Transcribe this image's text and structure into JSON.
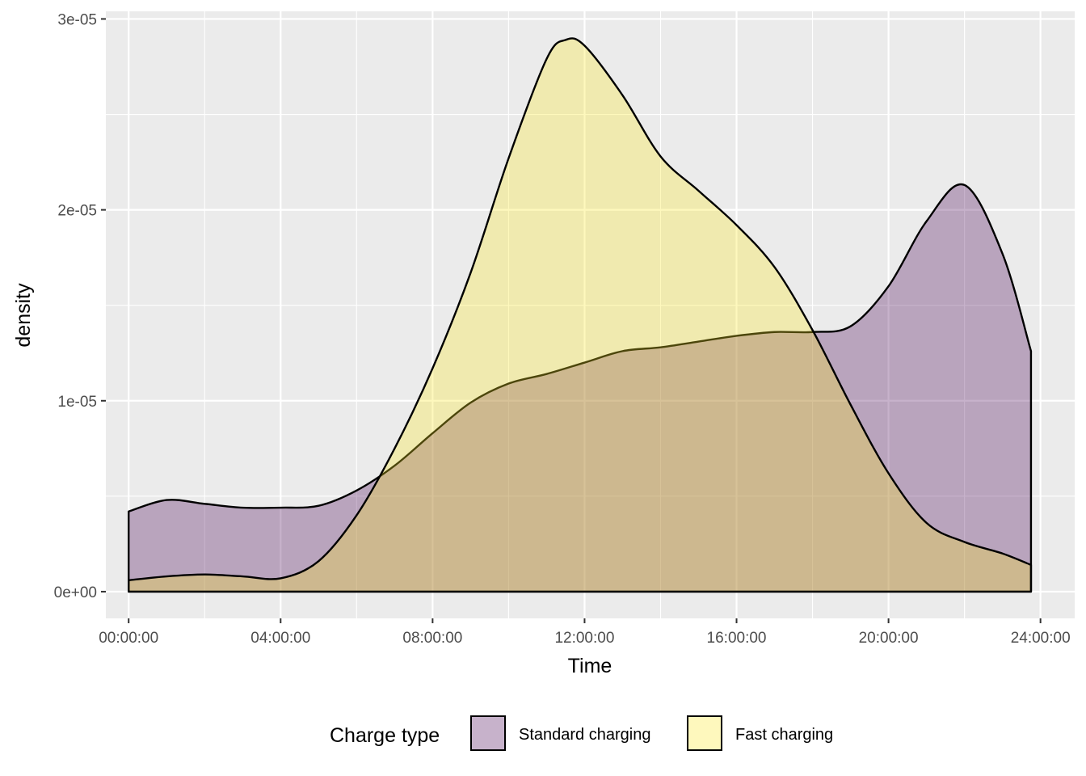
{
  "chart_data": {
    "type": "area",
    "subtype": "density",
    "title": "",
    "xlabel": "Time",
    "ylabel": "density",
    "x_unit": "hours",
    "xlim": [
      -0.6,
      24.9
    ],
    "ylim": [
      -1.4e-06,
      3.04e-05
    ],
    "x_ticks": [
      0,
      4,
      8,
      12,
      16,
      20,
      24
    ],
    "x_tick_labels": [
      "00:00:00",
      "04:00:00",
      "08:00:00",
      "12:00:00",
      "16:00:00",
      "20:00:00",
      "24:00:00"
    ],
    "x_minor_ticks": [
      2,
      6,
      10,
      14,
      18,
      22
    ],
    "y_ticks": [
      0,
      1e-05,
      2e-05,
      3e-05
    ],
    "y_tick_labels": [
      "0e+00",
      "1e-05",
      "2e-05",
      "3e-05"
    ],
    "y_minor_ticks": [
      5e-06,
      1.5e-05,
      2.5e-05
    ],
    "grid": true,
    "panel_background": "#ebebeb",
    "grid_color": "#ffffff",
    "legend": {
      "title": "Charge type",
      "position": "bottom",
      "entries": [
        "Standard charging",
        "Fast charging"
      ]
    },
    "x_range_data": [
      0,
      23.75
    ],
    "series": [
      {
        "name": "Standard charging",
        "fill": "#440154",
        "fill_opacity": 0.3,
        "outline": "#000000",
        "x": [
          0,
          1,
          2,
          3,
          4,
          5,
          6,
          7,
          8,
          9,
          10,
          11,
          12,
          13,
          14,
          15,
          16,
          17,
          18,
          19,
          20,
          21,
          22,
          23,
          23.75
        ],
        "y": [
          4.2e-06,
          4.8e-06,
          4.6e-06,
          4.4e-06,
          4.4e-06,
          4.5e-06,
          5.3e-06,
          6.6e-06,
          8.3e-06,
          9.9e-06,
          1.09e-05,
          1.14e-05,
          1.2e-05,
          1.26e-05,
          1.28e-05,
          1.31e-05,
          1.34e-05,
          1.36e-05,
          1.36e-05,
          1.39e-05,
          1.6e-05,
          1.94e-05,
          2.13e-05,
          1.77e-05,
          1.26e-05
        ]
      },
      {
        "name": "Fast charging",
        "fill": "#fde725",
        "fill_opacity": 0.3,
        "outline": "#000000",
        "x": [
          0,
          1,
          2,
          3,
          4,
          5,
          6,
          7,
          8,
          9,
          10,
          11,
          11.5,
          12,
          13,
          14,
          15,
          16,
          17,
          18,
          19,
          20,
          21,
          22,
          23,
          23.75
        ],
        "y": [
          6e-07,
          8e-07,
          9e-07,
          8e-07,
          7e-07,
          1.6e-06,
          4e-06,
          7.5e-06,
          1.17e-05,
          1.67e-05,
          2.27e-05,
          2.79e-05,
          2.89e-05,
          2.86e-05,
          2.6e-05,
          2.28e-05,
          2.1e-05,
          1.92e-05,
          1.7e-05,
          1.37e-05,
          9.8e-06,
          6.2e-06,
          3.6e-06,
          2.6e-06,
          2e-06,
          1.4e-06
        ]
      }
    ]
  }
}
